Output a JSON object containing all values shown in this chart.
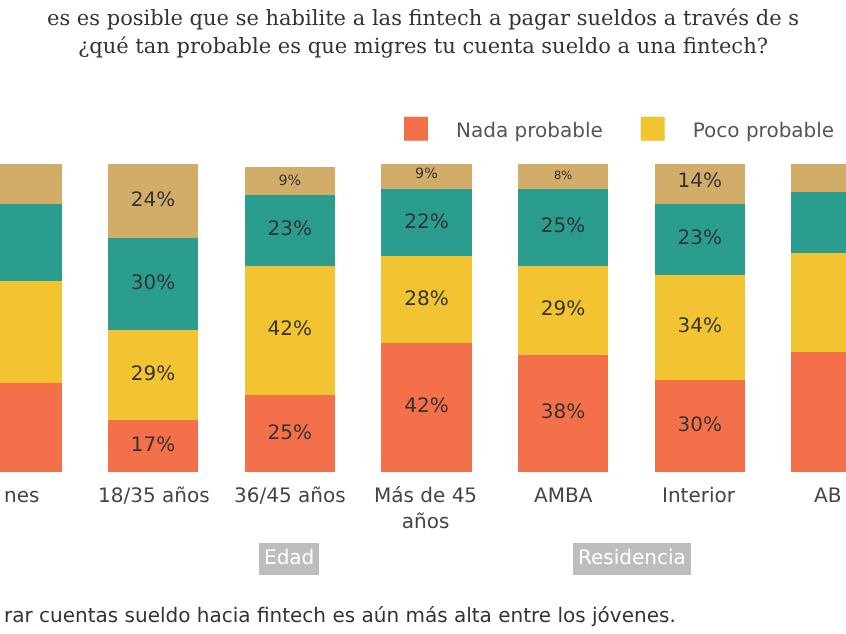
{
  "chart_data": {
    "type": "bar",
    "stacked": true,
    "title": "es es posible que se habilite a las fintech a pagar sueldos a través de s\n¿qué tan probable es que migres tu cuenta sueldo a una fintech?",
    "categories": [
      "nes",
      "18/35 años",
      "36/45 años",
      "Más de 45 años",
      "AMBA",
      "Interior",
      "AB"
    ],
    "series": [
      {
        "name": "Nada probable",
        "color": "#f4704a",
        "values": [
          29,
          17,
          25,
          42,
          38,
          30,
          39
        ],
        "value_labels": [
          null,
          "17%",
          "25%",
          "42%",
          "38%",
          "30%",
          null
        ]
      },
      {
        "name": "Poco probable",
        "color": "#f3c431",
        "values": [
          33,
          29,
          42,
          28,
          29,
          34,
          32
        ],
        "value_labels": [
          null,
          "29%",
          "42%",
          "28%",
          "29%",
          "34%",
          null
        ]
      },
      {
        "color": "#2a9d8f",
        "values": [
          25,
          30,
          23,
          22,
          25,
          23,
          20
        ],
        "value_labels": [
          null,
          "30%",
          "23%",
          "22%",
          "25%",
          "23%",
          null
        ]
      },
      {
        "color": "#d2ad69",
        "values": [
          13,
          24,
          9,
          9,
          8,
          14,
          9
        ],
        "value_labels": [
          null,
          "24%",
          "9%",
          "9%",
          "8%",
          "14%",
          null
        ]
      }
    ],
    "legend": "top right",
    "annotations": [
      "Edad",
      "Residencia",
      "rar cuentas sueldo hacia fintech es aún más alta entre los jóvenes."
    ]
  }
}
